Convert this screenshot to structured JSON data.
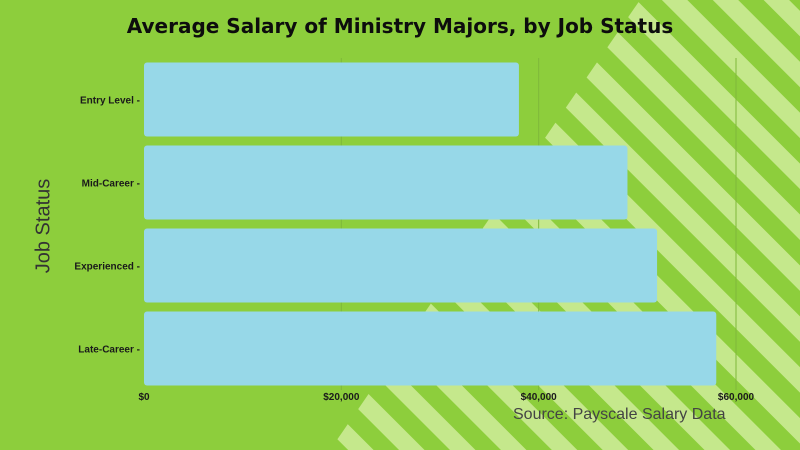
{
  "chart_data": {
    "type": "bar",
    "orientation": "horizontal",
    "title": "Average Salary of Ministry Majors, by Job Status",
    "ylabel": "Job Status",
    "xlabel": "",
    "source": "Source: Payscale Salary Data",
    "categories": [
      "Entry Level",
      "Mid-Career",
      "Experienced",
      "Late-Career"
    ],
    "category_labels": [
      "Entry Level -",
      "Mid-Career -",
      "Experienced -",
      "Late-Career -"
    ],
    "values": [
      38000,
      49000,
      52000,
      58000
    ],
    "xlim": [
      0,
      60000
    ],
    "xticks": [
      0,
      20000,
      40000,
      60000
    ],
    "xtick_labels": [
      "$0",
      "$20,000",
      "$40,000",
      "$60,000"
    ],
    "bar_color": "#97d8e8",
    "background_color": "#8dce3c",
    "stripe_color": "#c5e88c",
    "grid": true
  }
}
